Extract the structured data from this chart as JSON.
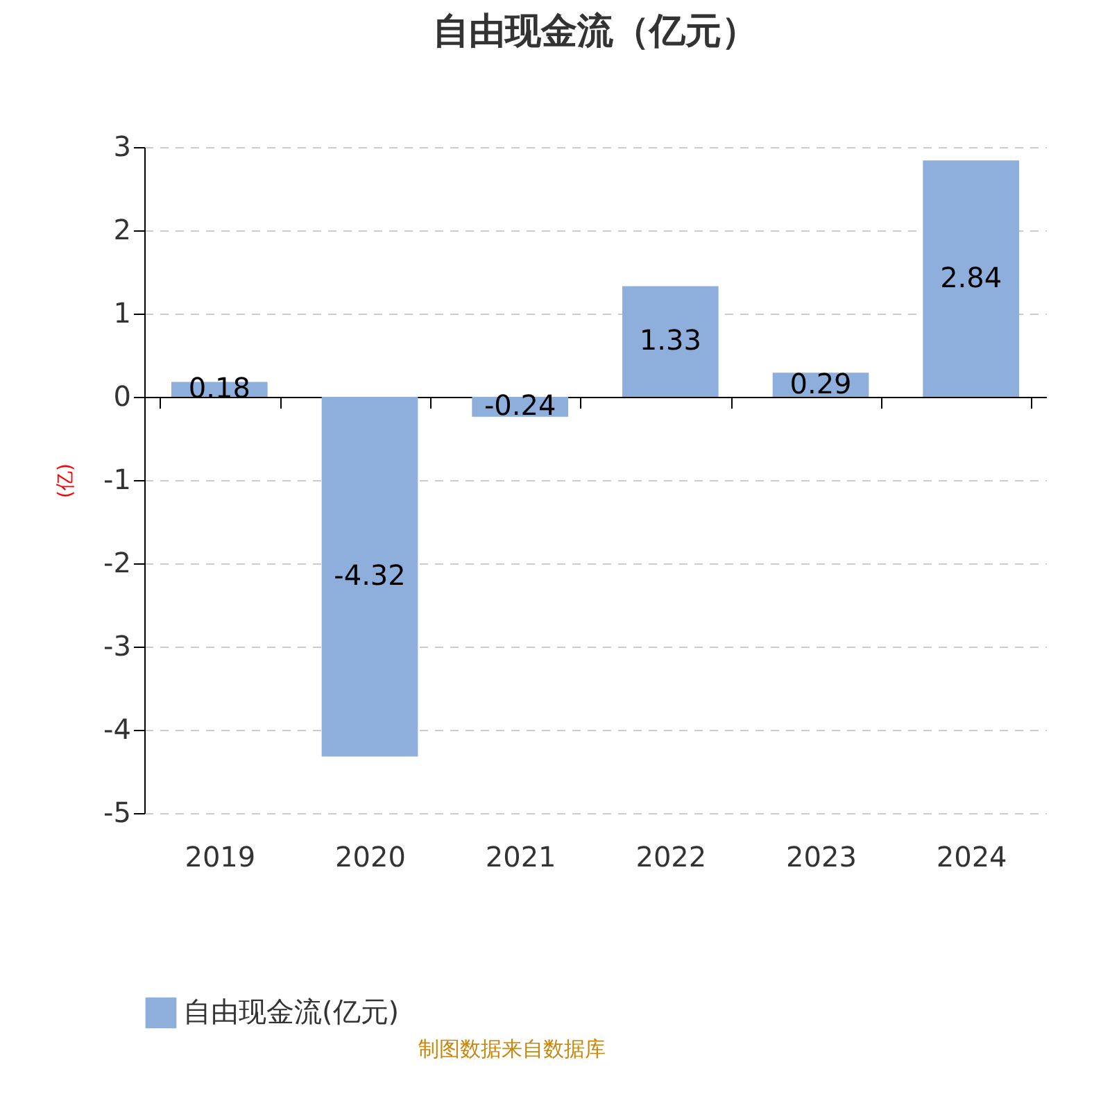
{
  "chart_data": {
    "type": "bar",
    "title": "自由现金流（亿元）",
    "ylabel": "(亿)",
    "categories": [
      "2019",
      "2020",
      "2021",
      "2022",
      "2023",
      "2024"
    ],
    "series": [
      {
        "name": "自由现金流(亿元)",
        "color": "#8eaedb",
        "values": [
          0.18,
          -4.32,
          -0.24,
          1.33,
          0.29,
          2.84
        ]
      }
    ],
    "ylim": [
      -5,
      3
    ],
    "yticks": [
      -5,
      -4,
      -3,
      -2,
      -1,
      0,
      1,
      2,
      3
    ],
    "grid": "y",
    "data_labels": true,
    "legend": "bottom",
    "annotations": [
      "制图数据来自数据库"
    ]
  }
}
